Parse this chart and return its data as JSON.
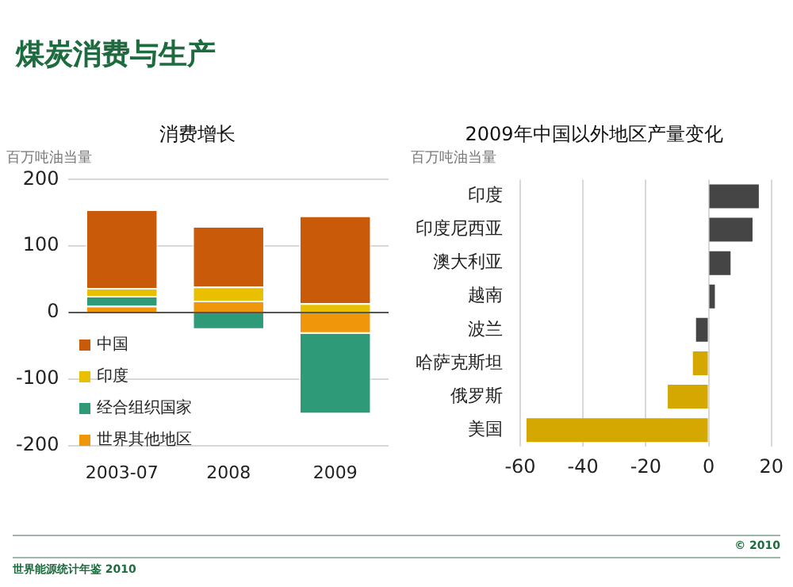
{
  "chart_data": [
    {
      "type": "bar",
      "title": "消费增长",
      "ylabel": "百万吨油当量",
      "categories": [
        "2003-07",
        "2008",
        "2009"
      ],
      "stacked": true,
      "series": [
        {
          "name": "世界其他地区",
          "color": "#f0960a",
          "values": [
            10,
            18,
            -32
          ]
        },
        {
          "name": "经合组织国家",
          "color": "#2e9a78",
          "values": [
            15,
            -26,
            -121
          ]
        },
        {
          "name": "印度",
          "color": "#e8c000",
          "values": [
            12,
            21,
            14
          ]
        },
        {
          "name": "中国",
          "color": "#c85a0a",
          "values": [
            118,
            91,
            132
          ]
        }
      ],
      "ylim": [
        -200,
        200
      ],
      "yticks": [
        -200,
        -100,
        0,
        100,
        200
      ],
      "grid": "y",
      "legend": "bottom left",
      "annotations": [
        "煤炭消费与生产"
      ]
    },
    {
      "type": "bar",
      "orientation": "horizontal",
      "title": "2009年中国以外地区产量变化",
      "subtitle": "百万吨油当量",
      "categories": [
        "印度",
        "印度尼西亚",
        "澳大利亚",
        "越南",
        "波兰",
        "哈萨克斯坦",
        "俄罗斯",
        "美国"
      ],
      "values": [
        16,
        14,
        7,
        2,
        -4,
        -5,
        -13,
        -58
      ],
      "colors": [
        "#454545",
        "#454545",
        "#454545",
        "#454545",
        "#454545",
        "#d4a800",
        "#d4a800",
        "#d4a800"
      ],
      "xlim": [
        -60,
        20
      ],
      "xticks": [
        -60,
        -40,
        -20,
        0,
        20
      ],
      "grid": "x",
      "legend": false,
      "annotations": [
        "© 2010",
        "世界能源统计年鉴 2010"
      ]
    }
  ]
}
